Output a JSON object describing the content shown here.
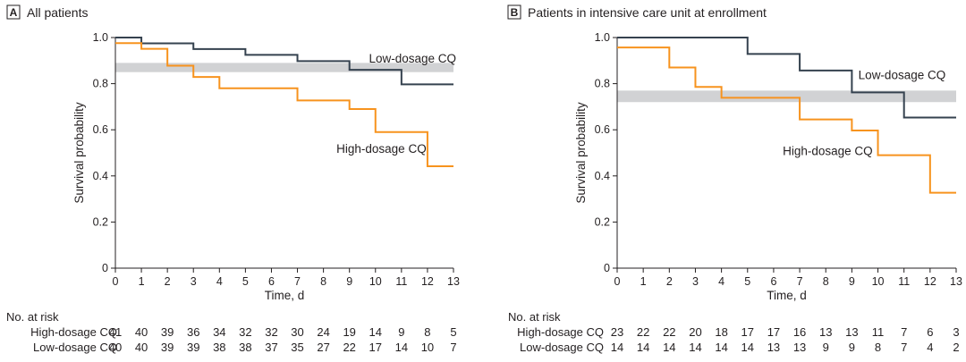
{
  "panels": [
    {
      "letter": "A",
      "title": "All patients",
      "chart_data": {
        "type": "line",
        "step": true,
        "xlabel": "Time, d",
        "ylabel": "Survival probability",
        "xlim": [
          0,
          13
        ],
        "ylim": [
          0,
          1.0
        ],
        "xticks": [
          "0",
          "1",
          "2",
          "3",
          "4",
          "5",
          "6",
          "7",
          "8",
          "9",
          "10",
          "11",
          "12",
          "13"
        ],
        "yticks": [
          "0",
          "0.2",
          "0.4",
          "0.6",
          "0.8",
          "1.0"
        ],
        "grid": false,
        "reference_band": [
          0.85,
          0.89
        ],
        "series": [
          {
            "name": "Low-dosage CQ",
            "color": "#35424f",
            "x": [
              0,
              1,
              3,
              5,
              7,
              9,
              11,
              13
            ],
            "y": [
              1.0,
              0.975,
              0.95,
              0.925,
              0.898,
              0.86,
              0.797,
              0.797
            ]
          },
          {
            "name": "High-dosage CQ",
            "color": "#f7931e",
            "x": [
              0,
              1,
              2,
              3,
              4,
              7,
              9,
              10,
              12,
              13
            ],
            "y": [
              0.976,
              0.951,
              0.878,
              0.829,
              0.78,
              0.727,
              0.69,
              0.59,
              0.442,
              0.442
            ]
          }
        ],
        "annotations": [
          {
            "text": "Low-dosage CQ",
            "x": 9.75,
            "y": 0.91
          },
          {
            "text": "High-dosage CQ",
            "x": 8.5,
            "y": 0.52
          }
        ]
      },
      "risk_table": {
        "title": "No. at risk",
        "rows": [
          {
            "label": "High-dosage CQ",
            "values": [
              "41",
              "40",
              "39",
              "36",
              "34",
              "32",
              "32",
              "30",
              "24",
              "19",
              "14",
              "9",
              "8",
              "5"
            ]
          },
          {
            "label": "Low-dosage CQ",
            "values": [
              "40",
              "40",
              "39",
              "39",
              "38",
              "38",
              "37",
              "35",
              "27",
              "22",
              "17",
              "14",
              "10",
              "7"
            ]
          }
        ]
      }
    },
    {
      "letter": "B",
      "title": "Patients in intensive care unit at enrollment",
      "chart_data": {
        "type": "line",
        "step": true,
        "xlabel": "Time, d",
        "ylabel": "Survival probability",
        "xlim": [
          0,
          13
        ],
        "ylim": [
          0,
          1.0
        ],
        "xticks": [
          "0",
          "1",
          "2",
          "3",
          "4",
          "5",
          "6",
          "7",
          "8",
          "9",
          "10",
          "11",
          "12",
          "13"
        ],
        "yticks": [
          "0",
          "0.2",
          "0.4",
          "0.6",
          "0.8",
          "1.0"
        ],
        "grid": false,
        "reference_band": [
          0.72,
          0.77
        ],
        "series": [
          {
            "name": "Low-dosage CQ",
            "color": "#35424f",
            "x": [
              0,
              5,
              7,
              9,
              11,
              13
            ],
            "y": [
              1.0,
              0.929,
              0.857,
              0.762,
              0.653,
              0.653
            ]
          },
          {
            "name": "High-dosage CQ",
            "color": "#f7931e",
            "x": [
              0,
              2,
              3,
              4,
              7,
              9,
              10,
              12,
              13
            ],
            "y": [
              0.957,
              0.87,
              0.786,
              0.739,
              0.645,
              0.597,
              0.49,
              0.327,
              0.327
            ]
          }
        ],
        "annotations": [
          {
            "text": "Low-dosage CQ",
            "x": 9.25,
            "y": 0.84
          },
          {
            "text": "High-dosage CQ",
            "x": 6.35,
            "y": 0.51
          }
        ]
      },
      "risk_table": {
        "title": "No. at risk",
        "rows": [
          {
            "label": "High-dosage CQ",
            "values": [
              "23",
              "22",
              "22",
              "20",
              "18",
              "17",
              "17",
              "16",
              "13",
              "13",
              "11",
              "7",
              "6",
              "3"
            ]
          },
          {
            "label": "Low-dosage CQ",
            "values": [
              "14",
              "14",
              "14",
              "14",
              "14",
              "14",
              "13",
              "13",
              "9",
              "9",
              "8",
              "7",
              "4",
              "2"
            ]
          }
        ]
      }
    }
  ]
}
